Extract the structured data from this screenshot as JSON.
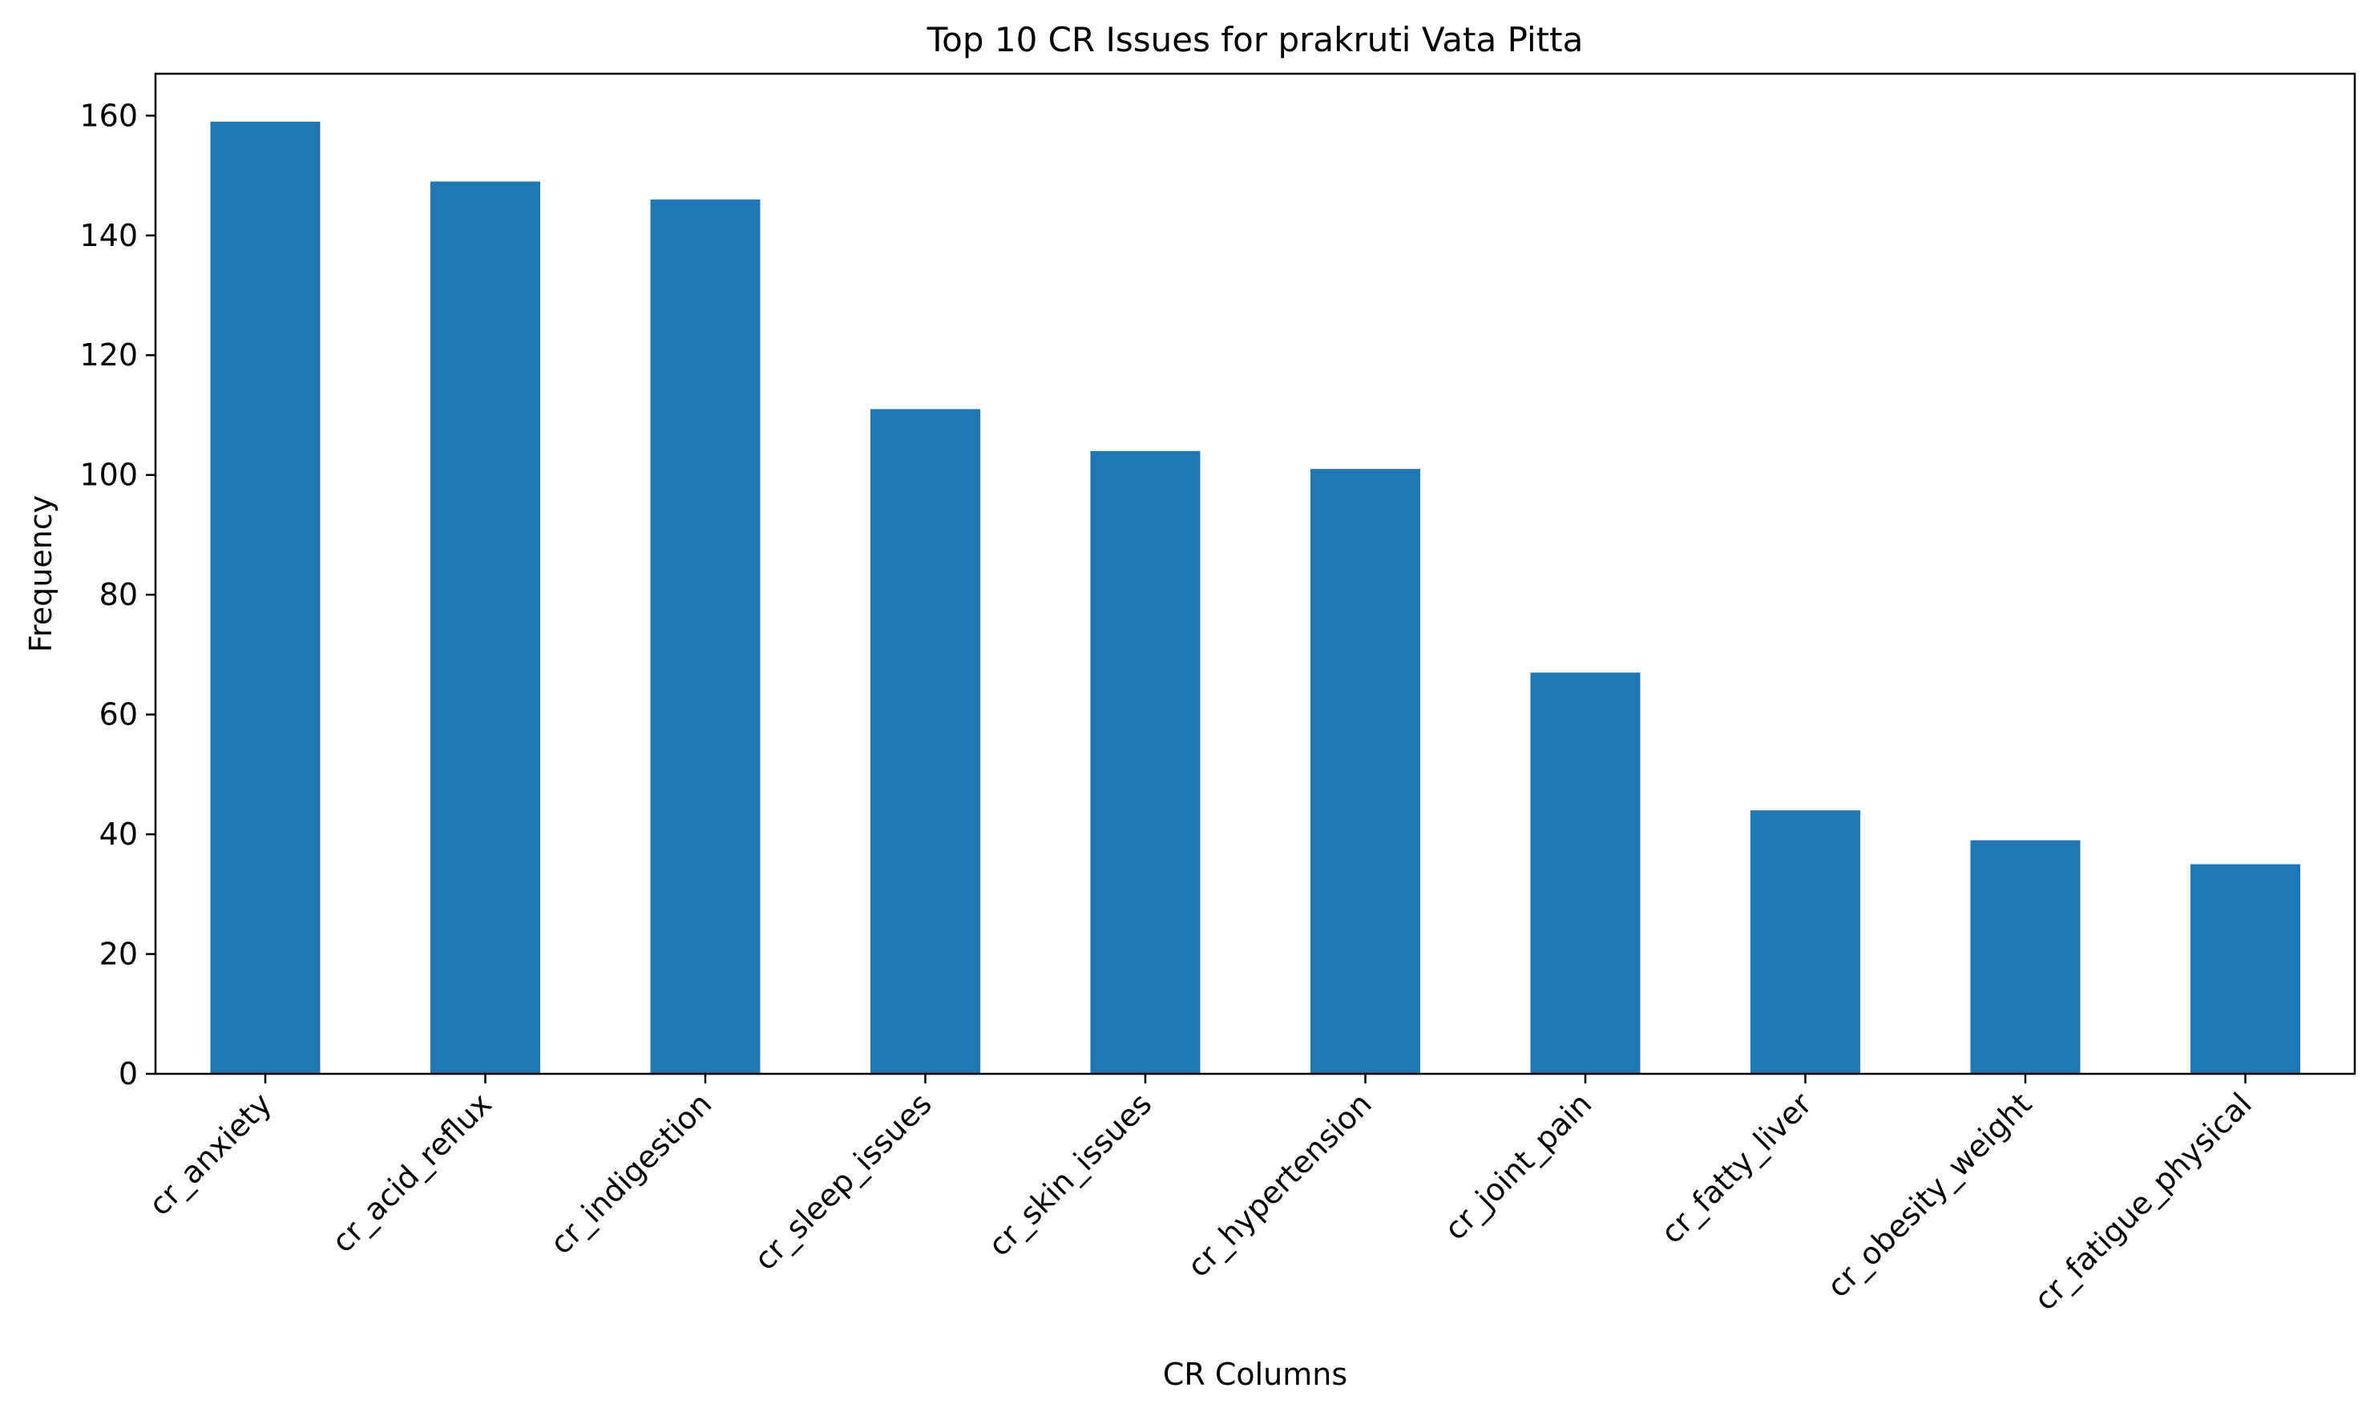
{
  "chart_data": {
    "type": "bar",
    "title": "Top 10 CR Issues for prakruti Vata Pitta",
    "xlabel": "CR Columns",
    "ylabel": "Frequency",
    "categories": [
      "cr_anxiety",
      "cr_acid_reflux",
      "cr_indigestion",
      "cr_sleep_issues",
      "cr_skin_issues",
      "cr_hypertension",
      "cr_joint_pain",
      "cr_fatty_liver",
      "cr_obesity_weight",
      "cr_fatigue_physical"
    ],
    "values": [
      159,
      149,
      146,
      111,
      104,
      101,
      67,
      44,
      39,
      35
    ],
    "ylim": [
      0,
      167
    ],
    "yticks": [
      0,
      20,
      40,
      60,
      80,
      100,
      120,
      140,
      160
    ],
    "bar_color": "#1f77b4",
    "grid": false,
    "legend": "none"
  }
}
